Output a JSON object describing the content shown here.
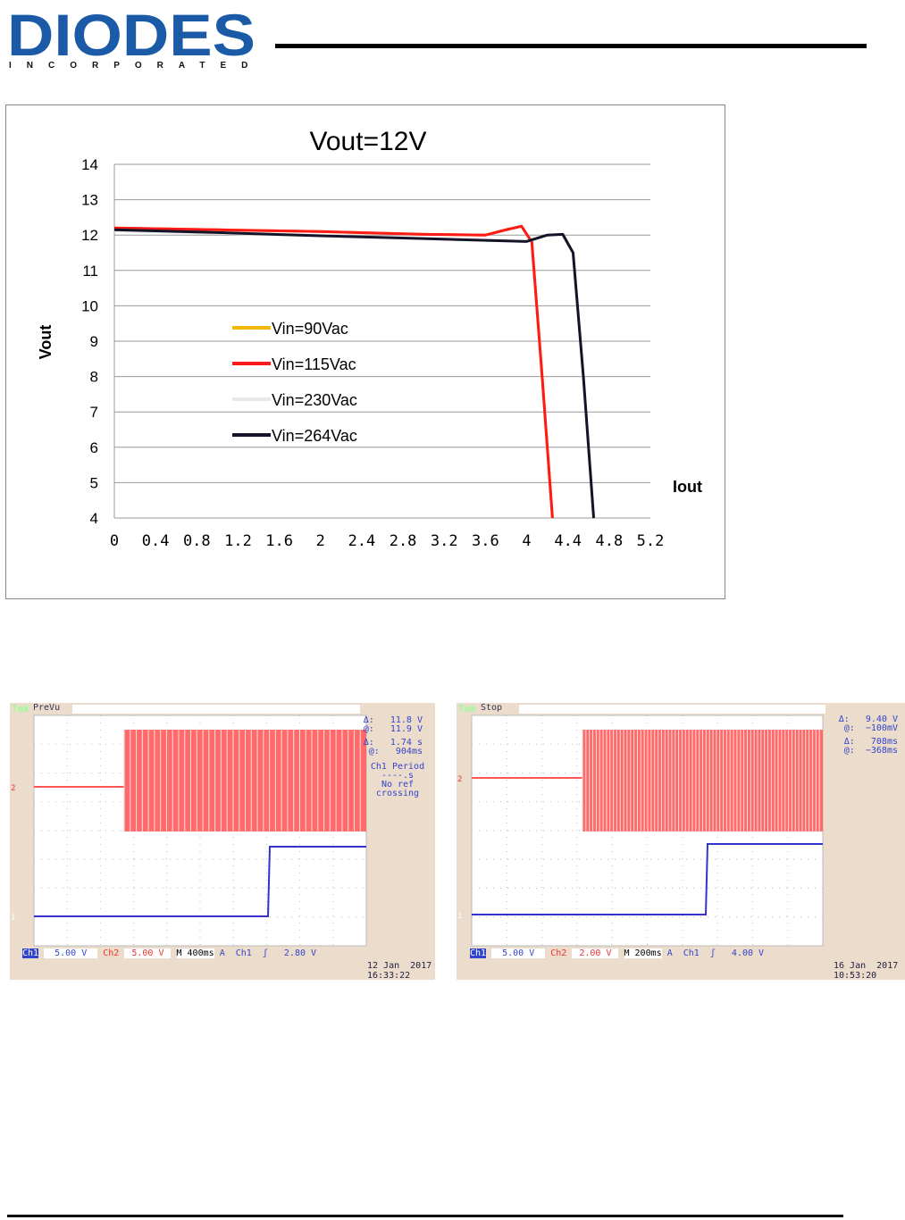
{
  "logo": {
    "name": "DIODES",
    "sub": "INCORPORATED"
  },
  "colors": {
    "brand": "#1a5aa6",
    "s90": "#f5b800",
    "s115": "#ff1a1a",
    "s230": "#e8e8e8",
    "s264": "#141428"
  },
  "chart_data": {
    "type": "line",
    "title": "Vout=12V",
    "xlabel": "Iout",
    "ylabel": "Vout",
    "xlim": [
      0,
      5.2
    ],
    "ylim": [
      4,
      14
    ],
    "xticks": [
      "0",
      "0.4",
      "0.8",
      "1.2",
      "1.6",
      "2",
      "2.4",
      "2.8",
      "3.2",
      "3.6",
      "4",
      "4.4",
      "4.8",
      "5.2"
    ],
    "yticks": [
      "4",
      "5",
      "6",
      "7",
      "8",
      "9",
      "10",
      "11",
      "12",
      "13",
      "14"
    ],
    "legend_position": "center-left",
    "grid": "horizontal",
    "series": [
      {
        "name": "Vin=90Vac",
        "color": "#f5b800",
        "x": [
          0,
          1,
          2,
          3,
          3.6,
          3.8,
          3.95,
          4.05,
          4.15,
          4.25
        ],
        "y": [
          12.2,
          12.15,
          12.1,
          12.02,
          12.0,
          12.15,
          12.25,
          11.8,
          8,
          4
        ]
      },
      {
        "name": "Vin=115Vac",
        "color": "#ff1a1a",
        "x": [
          0,
          1,
          2,
          3,
          3.6,
          3.8,
          3.95,
          4.05,
          4.15,
          4.25
        ],
        "y": [
          12.2,
          12.15,
          12.1,
          12.02,
          12.0,
          12.15,
          12.25,
          11.8,
          8,
          4
        ]
      },
      {
        "name": "Vin=230Vac",
        "color": "#e8e8e8",
        "x": [
          0,
          1,
          2,
          3,
          4,
          4.2,
          4.35,
          4.45,
          4.55,
          4.65
        ],
        "y": [
          12.12,
          12.05,
          11.98,
          11.9,
          11.82,
          12.0,
          12.02,
          11.5,
          8,
          4
        ]
      },
      {
        "name": "Vin=264Vac",
        "color": "#141428",
        "x": [
          0,
          1,
          2,
          3,
          4,
          4.2,
          4.35,
          4.45,
          4.55,
          4.65
        ],
        "y": [
          12.15,
          12.07,
          11.98,
          11.9,
          11.82,
          12.0,
          12.02,
          11.5,
          8,
          4
        ]
      }
    ]
  },
  "scope1": {
    "brand": "Tek",
    "mode": "PreVu",
    "d1": "Δ:   11.8 V",
    "a1": "@:   11.9 V",
    "d2": "Δ:   1.74 s",
    "a2": "@:   904ms",
    "meas": "Ch1 Period",
    "meas_val": "----.s",
    "meas_note": "No ref\ncrossing",
    "ch1": "Ch1",
    "ch1v": "5.00 V",
    "ch2": "Ch2",
    "ch2v": "5.00 V",
    "time": "M 400ms",
    "trig": "A  Ch1  ʃ   2.80 V",
    "date": "12 Jan  2017",
    "clock": "16:33:22"
  },
  "scope2": {
    "brand": "Tek",
    "mode": "Stop",
    "d1": "Δ:   9.40 V",
    "a1": "@:  −100mV",
    "d2": "Δ:   708ms",
    "a2": "@:  −368ms",
    "ch1": "Ch1",
    "ch1v": "5.00 V",
    "ch2": "Ch2",
    "ch2v": "2.00 V",
    "time": "M 200ms",
    "trig": "A  Ch1  ʃ   4.00 V",
    "date": "16 Jan  2017",
    "clock": "10:53:20"
  }
}
